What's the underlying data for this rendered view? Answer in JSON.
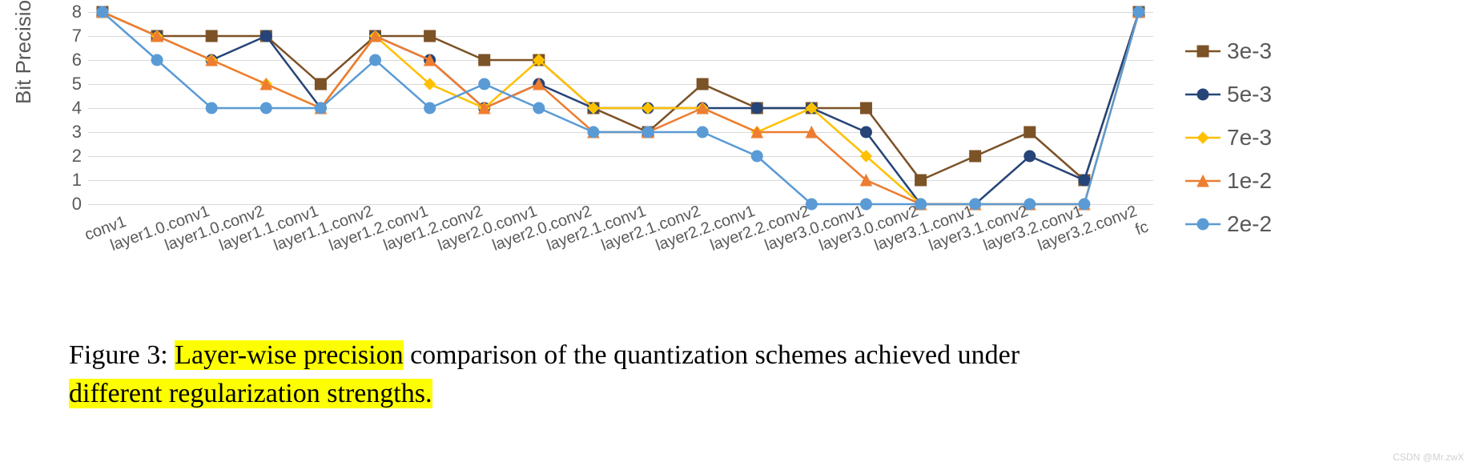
{
  "chart": {
    "type": "line",
    "ylabel": "Bit Precision",
    "ylabel_fontsize": 26,
    "ylim": [
      0,
      8
    ],
    "ytick_step": 1,
    "yticks": [
      0,
      1,
      2,
      3,
      4,
      5,
      6,
      7,
      8
    ],
    "tick_fontsize": 22,
    "xtick_fontsize": 20,
    "xtick_rotation": -20,
    "background_color": "#ffffff",
    "grid_color": "#d9d9d9",
    "axis_color": "#d9d9d9",
    "tick_text_color": "#595959",
    "line_width": 2.5,
    "marker_size": 7,
    "categories": [
      "conv1",
      "layer1.0.conv1",
      "layer1.0.conv2",
      "layer1.1.conv1",
      "layer1.1.conv2",
      "layer1.2.conv1",
      "layer1.2.conv2",
      "layer2.0.conv1",
      "layer2.0.conv2",
      "layer2.1.conv1",
      "layer2.1.conv2",
      "layer2.2.conv1",
      "layer2.2.conv2",
      "layer3.0.conv1",
      "layer3.0.conv2",
      "layer3.1.conv1",
      "layer3.1.conv2",
      "layer3.2.conv1",
      "layer3.2.conv2",
      "fc"
    ],
    "series": [
      {
        "name": "3e-3",
        "color": "#7c5227",
        "marker": "square",
        "values": [
          8,
          7,
          7,
          7,
          5,
          7,
          7,
          6,
          6,
          4,
          3,
          5,
          4,
          4,
          4,
          1,
          2,
          3,
          1,
          8
        ]
      },
      {
        "name": "5e-3",
        "color": "#264478",
        "marker": "circle",
        "values": [
          8,
          7,
          6,
          7,
          4,
          7,
          6,
          4,
          5,
          4,
          4,
          4,
          4,
          4,
          3,
          0,
          0,
          2,
          1,
          8
        ]
      },
      {
        "name": "7e-3",
        "color": "#ffc000",
        "marker": "diamond",
        "values": [
          8,
          7,
          6,
          5,
          4,
          7,
          5,
          4,
          6,
          4,
          4,
          4,
          3,
          4,
          2,
          0,
          0,
          0,
          0,
          8
        ]
      },
      {
        "name": "1e-2",
        "color": "#ed7d31",
        "marker": "triangle",
        "values": [
          8,
          7,
          6,
          5,
          4,
          7,
          6,
          4,
          5,
          3,
          3,
          4,
          3,
          3,
          1,
          0,
          0,
          0,
          0,
          8
        ]
      },
      {
        "name": "2e-2",
        "color": "#5b9bd5",
        "marker": "circle",
        "values": [
          8,
          6,
          4,
          4,
          4,
          6,
          4,
          5,
          4,
          3,
          3,
          3,
          2,
          0,
          0,
          0,
          0,
          0,
          0,
          8
        ]
      }
    ]
  },
  "legend": {
    "fontsize": 28,
    "text_color": "#595959",
    "position": "right"
  },
  "caption": {
    "prefix": "Figure 3: ",
    "hl1": "Layer-wise precision",
    "mid1": " comparison of the quantization schemes achieved under ",
    "hl2": "different regularization strengths.",
    "fontsize": 34,
    "highlight_color": "#fdff00",
    "text_color": "#000000"
  },
  "watermark": "CSDN @Mr.zwX"
}
